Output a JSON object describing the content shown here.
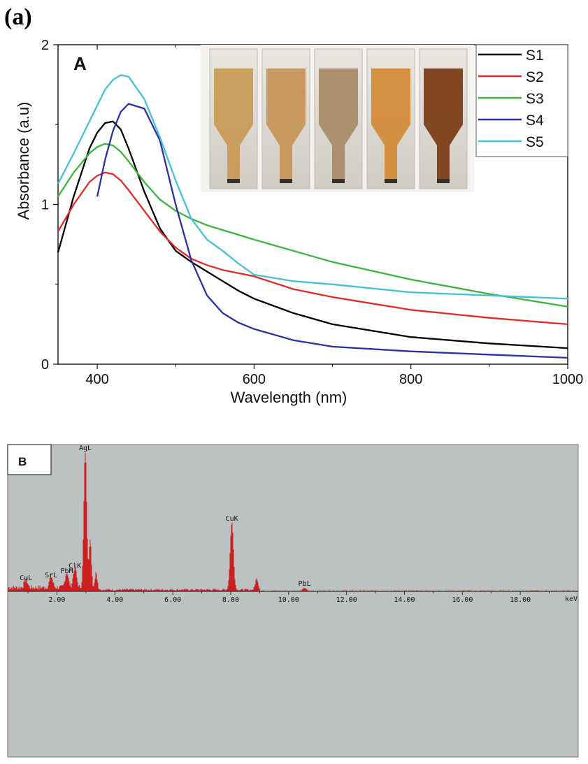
{
  "figure_label": "(a)",
  "chart_data": [
    {
      "type": "line",
      "panel_label": "A",
      "xlabel": "Wavelength (nm)",
      "ylabel": "Absorbance (a.u)",
      "xlim": [
        350,
        1000
      ],
      "ylim": [
        0,
        2
      ],
      "xticks": [
        400,
        600,
        800,
        1000
      ],
      "yticks": [
        0,
        1,
        2
      ],
      "legend_position": "top-right",
      "inset": "photo of five sample cuvettes",
      "colors": {
        "S1": "#000000",
        "S2": "#e02a2a",
        "S3": "#3cb43c",
        "S4": "#2b2fa0",
        "S5": "#45c0d4"
      },
      "x": [
        350,
        370,
        390,
        400,
        410,
        420,
        430,
        440,
        460,
        480,
        500,
        520,
        540,
        560,
        580,
        600,
        650,
        700,
        800,
        900,
        1000
      ],
      "series": [
        {
          "name": "S1",
          "values": [
            0.7,
            1.05,
            1.35,
            1.45,
            1.51,
            1.52,
            1.47,
            1.35,
            1.08,
            0.85,
            0.71,
            0.64,
            0.58,
            0.52,
            0.46,
            0.41,
            0.32,
            0.25,
            0.17,
            0.13,
            0.1
          ]
        },
        {
          "name": "S2",
          "values": [
            0.83,
            1.0,
            1.14,
            1.18,
            1.2,
            1.19,
            1.15,
            1.09,
            0.96,
            0.83,
            0.73,
            0.66,
            0.62,
            0.59,
            0.57,
            0.55,
            0.47,
            0.42,
            0.34,
            0.29,
            0.25
          ]
        },
        {
          "name": "S3",
          "values": [
            1.05,
            1.2,
            1.32,
            1.36,
            1.38,
            1.37,
            1.33,
            1.27,
            1.14,
            1.03,
            0.96,
            0.91,
            0.87,
            0.84,
            0.81,
            0.78,
            0.71,
            0.64,
            0.53,
            0.44,
            0.36
          ]
        },
        {
          "name": "S4",
          "values": [
            null,
            null,
            null,
            1.05,
            1.28,
            1.46,
            1.58,
            1.63,
            1.6,
            1.4,
            1.0,
            0.65,
            0.43,
            0.32,
            0.26,
            0.22,
            0.15,
            0.11,
            0.08,
            0.06,
            0.04
          ]
        },
        {
          "name": "S5",
          "values": [
            1.13,
            1.32,
            1.52,
            1.62,
            1.72,
            1.78,
            1.81,
            1.8,
            1.66,
            1.42,
            1.15,
            0.91,
            0.78,
            0.71,
            0.63,
            0.56,
            0.52,
            0.5,
            0.45,
            0.43,
            0.41
          ]
        }
      ]
    },
    {
      "type": "bar",
      "panel_label": "B",
      "xlabel": "keV",
      "xlim": [
        0.3,
        20.0
      ],
      "xticks": [
        2,
        4,
        6,
        8,
        10,
        12,
        14,
        16,
        18
      ],
      "xtick_labels": [
        "2.00",
        "4.00",
        "6.00",
        "8.00",
        "10.00",
        "12.00",
        "14.00",
        "16.00",
        "18.00"
      ],
      "background": "#bcc2c1",
      "bar_color": "#cc1f1f",
      "peaks": [
        {
          "label": "AgL",
          "x": 2.98,
          "height": 1.0
        },
        {
          "label": "CuK",
          "x": 8.04,
          "height": 0.49
        },
        {
          "label": "ClK",
          "x": 2.62,
          "height": 0.15
        },
        {
          "label": "PbM",
          "x": 2.34,
          "height": 0.11
        },
        {
          "label": "SrL",
          "x": 1.8,
          "height": 0.08
        },
        {
          "label": "CuL",
          "x": 0.93,
          "height": 0.06
        },
        {
          "label": "PbL",
          "x": 10.55,
          "height": 0.02
        }
      ]
    }
  ]
}
